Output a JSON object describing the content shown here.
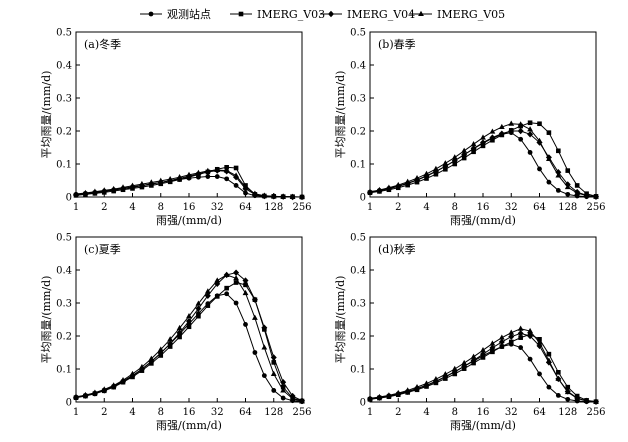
{
  "legend": [
    "观测站点",
    "IMERG_V03",
    "IMERG_V04",
    "IMERG_V05"
  ],
  "markers": {
    "观测站点": "circle",
    "IMERG_V03": "square",
    "IMERG_V04": "diamond",
    "IMERG_V05": "triangle"
  },
  "chart_data": [
    {
      "type": "line",
      "title": "(a)冬季",
      "xlabel": "雨强/(mm/d)",
      "ylabel": "平均雨量/(mm/d)",
      "x_tick_labels": [
        "1",
        "2",
        "4",
        "8",
        "16",
        "32",
        "64",
        "128",
        "256"
      ],
      "x_scale": "log2",
      "xlim": [
        1,
        256
      ],
      "ylim": [
        0,
        0.5
      ],
      "y_ticks": [
        0,
        0.1,
        0.2,
        0.3,
        0.4,
        0.5
      ],
      "y_tick_labels": [
        "0",
        "0.1",
        "0.2",
        "0.3",
        "0.4",
        "0.5"
      ],
      "x": [
        1,
        1.26,
        1.59,
        2,
        2.52,
        3.17,
        4,
        5.04,
        6.35,
        8,
        10.08,
        12.7,
        16,
        20.16,
        25.4,
        32,
        40.3,
        50.8,
        64,
        80.6,
        101.6,
        128,
        161.3,
        203.2,
        256
      ],
      "series": [
        {
          "name": "观测站点",
          "values": [
            0.008,
            0.011,
            0.014,
            0.018,
            0.022,
            0.026,
            0.031,
            0.035,
            0.04,
            0.044,
            0.049,
            0.053,
            0.057,
            0.06,
            0.062,
            0.062,
            0.055,
            0.035,
            0.012,
            0.004,
            0.002,
            0.001,
            0.001,
            0,
            0
          ]
        },
        {
          "name": "IMERG_V03",
          "values": [
            0.005,
            0.008,
            0.011,
            0.014,
            0.018,
            0.022,
            0.026,
            0.03,
            0.035,
            0.04,
            0.046,
            0.053,
            0.06,
            0.068,
            0.076,
            0.084,
            0.09,
            0.088,
            0.035,
            0.008,
            0.003,
            0.002,
            0.001,
            0.001,
            0
          ]
        },
        {
          "name": "IMERG_V04",
          "values": [
            0.007,
            0.01,
            0.013,
            0.017,
            0.021,
            0.025,
            0.029,
            0.034,
            0.039,
            0.044,
            0.05,
            0.056,
            0.063,
            0.07,
            0.076,
            0.08,
            0.078,
            0.06,
            0.025,
            0.008,
            0.003,
            0.002,
            0.001,
            0,
            0
          ]
        },
        {
          "name": "IMERG_V05",
          "values": [
            0.009,
            0.012,
            0.016,
            0.02,
            0.024,
            0.029,
            0.034,
            0.039,
            0.044,
            0.049,
            0.054,
            0.06,
            0.067,
            0.073,
            0.079,
            0.082,
            0.08,
            0.065,
            0.03,
            0.01,
            0.004,
            0.002,
            0.001,
            0,
            0
          ]
        }
      ]
    },
    {
      "type": "line",
      "title": "(b)春季",
      "xlabel": "雨强/(mm/d)",
      "ylabel": "平均雨量/(mm/d)",
      "x_tick_labels": [
        "1",
        "2",
        "4",
        "8",
        "16",
        "32",
        "64",
        "128",
        "256"
      ],
      "x_scale": "log2",
      "xlim": [
        1,
        256
      ],
      "ylim": [
        0,
        0.5
      ],
      "y_ticks": [
        0,
        0.1,
        0.2,
        0.3,
        0.4,
        0.5
      ],
      "y_tick_labels": [
        "0",
        "0.1",
        "0.2",
        "0.3",
        "0.4",
        "0.5"
      ],
      "x": [
        1,
        1.26,
        1.59,
        2,
        2.52,
        3.17,
        4,
        5.04,
        6.35,
        8,
        10.08,
        12.7,
        16,
        20.16,
        25.4,
        32,
        40.3,
        50.8,
        64,
        80.6,
        101.6,
        128,
        161.3,
        203.2,
        256
      ],
      "series": [
        {
          "name": "观测站点",
          "values": [
            0.015,
            0.02,
            0.026,
            0.033,
            0.042,
            0.052,
            0.064,
            0.078,
            0.093,
            0.11,
            0.128,
            0.146,
            0.163,
            0.178,
            0.19,
            0.195,
            0.175,
            0.135,
            0.085,
            0.045,
            0.02,
            0.008,
            0.003,
            0.001,
            0
          ]
        },
        {
          "name": "IMERG_V03",
          "values": [
            0.013,
            0.017,
            0.022,
            0.028,
            0.036,
            0.045,
            0.056,
            0.069,
            0.084,
            0.1,
            0.118,
            0.137,
            0.155,
            0.172,
            0.188,
            0.202,
            0.215,
            0.225,
            0.222,
            0.195,
            0.14,
            0.08,
            0.035,
            0.01,
            0.002
          ]
        },
        {
          "name": "IMERG_V04",
          "values": [
            0.014,
            0.019,
            0.025,
            0.032,
            0.041,
            0.051,
            0.063,
            0.077,
            0.093,
            0.11,
            0.128,
            0.147,
            0.165,
            0.18,
            0.192,
            0.2,
            0.2,
            0.19,
            0.165,
            0.12,
            0.075,
            0.038,
            0.015,
            0.005,
            0.001
          ]
        },
        {
          "name": "IMERG_V05",
          "values": [
            0.016,
            0.021,
            0.028,
            0.036,
            0.046,
            0.057,
            0.07,
            0.085,
            0.102,
            0.12,
            0.14,
            0.16,
            0.18,
            0.198,
            0.212,
            0.222,
            0.22,
            0.205,
            0.17,
            0.115,
            0.065,
            0.03,
            0.012,
            0.004,
            0.001
          ]
        }
      ]
    },
    {
      "type": "line",
      "title": "(c)夏季",
      "xlabel": "雨强/(mm/d)",
      "ylabel": "平均雨量/(mm/d)",
      "x_tick_labels": [
        "1",
        "2",
        "4",
        "8",
        "16",
        "32",
        "64",
        "128",
        "256"
      ],
      "x_scale": "log2",
      "xlim": [
        1,
        256
      ],
      "ylim": [
        0,
        0.5
      ],
      "y_ticks": [
        0,
        0.1,
        0.2,
        0.3,
        0.4,
        0.5
      ],
      "y_tick_labels": [
        "0",
        "0.1",
        "0.2",
        "0.3",
        "0.4",
        "0.5"
      ],
      "x": [
        1,
        1.26,
        1.59,
        2,
        2.52,
        3.17,
        4,
        5.04,
        6.35,
        8,
        10.08,
        12.7,
        16,
        20.16,
        25.4,
        32,
        40.3,
        50.8,
        64,
        80.6,
        101.6,
        128,
        161.3,
        203.2,
        256
      ],
      "series": [
        {
          "name": "观测站点",
          "values": [
            0.015,
            0.02,
            0.027,
            0.036,
            0.048,
            0.063,
            0.08,
            0.1,
            0.123,
            0.148,
            0.176,
            0.206,
            0.237,
            0.268,
            0.298,
            0.322,
            0.328,
            0.3,
            0.235,
            0.15,
            0.08,
            0.035,
            0.012,
            0.004,
            0.001
          ]
        },
        {
          "name": "IMERG_V03",
          "values": [
            0.013,
            0.018,
            0.025,
            0.034,
            0.045,
            0.06,
            0.076,
            0.095,
            0.117,
            0.141,
            0.168,
            0.197,
            0.228,
            0.26,
            0.292,
            0.32,
            0.345,
            0.362,
            0.355,
            0.31,
            0.22,
            0.12,
            0.045,
            0.012,
            0.003
          ]
        },
        {
          "name": "IMERG_V04",
          "values": [
            0.014,
            0.019,
            0.026,
            0.035,
            0.047,
            0.062,
            0.079,
            0.099,
            0.122,
            0.148,
            0.177,
            0.21,
            0.245,
            0.283,
            0.322,
            0.358,
            0.385,
            0.392,
            0.368,
            0.31,
            0.225,
            0.135,
            0.06,
            0.018,
            0.004
          ]
        },
        {
          "name": "IMERG_V05",
          "values": [
            0.015,
            0.021,
            0.028,
            0.038,
            0.05,
            0.066,
            0.085,
            0.106,
            0.131,
            0.159,
            0.19,
            0.224,
            0.26,
            0.298,
            0.335,
            0.368,
            0.385,
            0.375,
            0.33,
            0.255,
            0.165,
            0.085,
            0.035,
            0.01,
            0.002
          ]
        }
      ]
    },
    {
      "type": "line",
      "title": "(d)秋季",
      "xlabel": "雨强/(mm/d)",
      "ylabel": "平均雨量/(mm/d)",
      "x_tick_labels": [
        "1",
        "2",
        "4",
        "8",
        "16",
        "32",
        "64",
        "128",
        "256"
      ],
      "x_scale": "log2",
      "xlim": [
        1,
        256
      ],
      "ylim": [
        0,
        0.5
      ],
      "y_ticks": [
        0,
        0.1,
        0.2,
        0.3,
        0.4,
        0.5
      ],
      "y_tick_labels": [
        "0",
        "0.1",
        "0.2",
        "0.3",
        "0.4",
        "0.5"
      ],
      "x": [
        1,
        1.26,
        1.59,
        2,
        2.52,
        3.17,
        4,
        5.04,
        6.35,
        8,
        10.08,
        12.7,
        16,
        20.16,
        25.4,
        32,
        40.3,
        50.8,
        64,
        80.6,
        101.6,
        128,
        161.3,
        203.2,
        256
      ],
      "series": [
        {
          "name": "观测站点",
          "values": [
            0.01,
            0.014,
            0.019,
            0.025,
            0.032,
            0.041,
            0.051,
            0.063,
            0.077,
            0.092,
            0.108,
            0.124,
            0.14,
            0.155,
            0.168,
            0.175,
            0.165,
            0.13,
            0.085,
            0.045,
            0.02,
            0.008,
            0.003,
            0.001,
            0
          ]
        },
        {
          "name": "IMERG_V03",
          "values": [
            0.008,
            0.012,
            0.016,
            0.022,
            0.029,
            0.037,
            0.047,
            0.058,
            0.071,
            0.085,
            0.101,
            0.118,
            0.135,
            0.152,
            0.168,
            0.182,
            0.195,
            0.205,
            0.19,
            0.145,
            0.09,
            0.045,
            0.018,
            0.005,
            0.001
          ]
        },
        {
          "name": "IMERG_V04",
          "values": [
            0.009,
            0.013,
            0.018,
            0.024,
            0.031,
            0.04,
            0.05,
            0.062,
            0.076,
            0.091,
            0.108,
            0.126,
            0.145,
            0.164,
            0.182,
            0.198,
            0.208,
            0.2,
            0.17,
            0.12,
            0.07,
            0.032,
            0.012,
            0.003,
            0.001
          ]
        },
        {
          "name": "IMERG_V05",
          "values": [
            0.011,
            0.015,
            0.02,
            0.027,
            0.035,
            0.045,
            0.056,
            0.069,
            0.084,
            0.1,
            0.118,
            0.137,
            0.157,
            0.177,
            0.195,
            0.21,
            0.222,
            0.215,
            0.18,
            0.125,
            0.07,
            0.03,
            0.011,
            0.003,
            0.001
          ]
        }
      ]
    }
  ]
}
